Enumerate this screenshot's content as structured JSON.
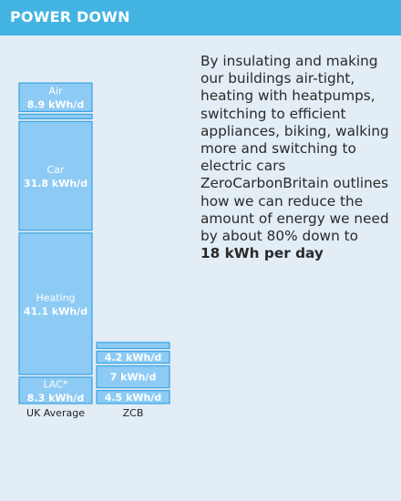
{
  "header": {
    "title": "POWER DOWN"
  },
  "description": {
    "text": "By insulating and making our buildings air-tight, heating with heatpumps, switching to efficient appliances, biking, walking more and switching to electric cars ZeroCarbonBritain outlines how we can reduce the amount of energy we need by about 80% down to",
    "highlight": "18 kWh per day"
  },
  "colors": {
    "segment_fill": "#8dcbf4",
    "segment_stroke": "#3aa3e0",
    "segment_text": "#ffffff",
    "axis_text": "#222222"
  },
  "chart_data": {
    "type": "bar",
    "stacked": true,
    "unit": "kWh/d",
    "categories": [
      "UK Average",
      "ZCB"
    ],
    "stacks": [
      {
        "category": "UK Average",
        "segments": [
          {
            "label": "LAC*",
            "value_label": "8.3 kWh/d",
            "value": 8.3
          },
          {
            "label": "Heating",
            "value_label": "41.1 kWh/d",
            "value": 41.1
          },
          {
            "label": "Car",
            "value_label": "31.8 kWh/d",
            "value": 31.8
          },
          {
            "label": "",
            "value_label": "",
            "value": 1.5
          },
          {
            "label": "Air",
            "value_label": "8.9 kWh/d",
            "value": 8.9
          }
        ]
      },
      {
        "category": "ZCB",
        "segments": [
          {
            "label": "",
            "value_label": "4.5 kWh/d",
            "value": 4.5
          },
          {
            "label": "",
            "value_label": "7 kWh/d",
            "value": 7
          },
          {
            "label": "",
            "value_label": "4.2 kWh/d",
            "value": 4.2
          },
          {
            "label": "",
            "value_label": "",
            "value": 2.5
          }
        ]
      }
    ]
  }
}
